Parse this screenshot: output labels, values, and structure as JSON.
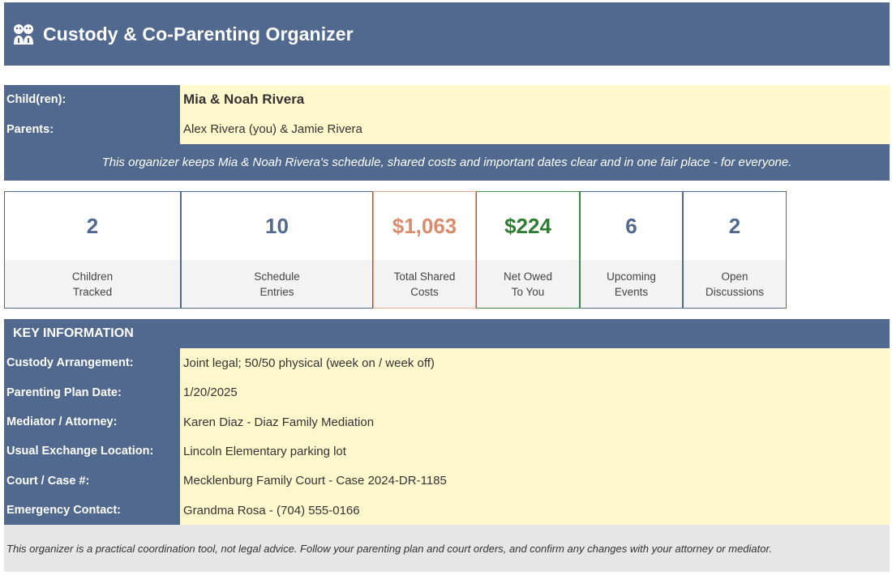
{
  "header": {
    "icon": "family-icon",
    "title": "Custody & Co-Parenting Organizer"
  },
  "profile": {
    "children_label": "Child(ren):",
    "children_value": "Mia & Noah Rivera",
    "parents_label": "Parents:",
    "parents_value": "Alex Rivera (you) & Jamie Rivera",
    "tagline": "This organizer keeps Mia & Noah Rivera's schedule, shared costs and important dates clear and in one fair place - for everyone."
  },
  "kpis": [
    {
      "value": "2",
      "line1": "Children",
      "line2": "Tracked",
      "color": "#51698f"
    },
    {
      "value": "10",
      "line1": "Schedule",
      "line2": "Entries",
      "color": "#51698f"
    },
    {
      "value": "$1,063",
      "line1": "Total Shared",
      "line2": "Costs",
      "color": "#d98b6b"
    },
    {
      "value": "$224",
      "line1": "Net Owed",
      "line2": "To You",
      "color": "#2f7d32"
    },
    {
      "value": "6",
      "line1": "Upcoming",
      "line2": "Events",
      "color": "#51698f"
    },
    {
      "value": "2",
      "line1": "Open",
      "line2": "Discussions",
      "color": "#51698f"
    }
  ],
  "key_info": {
    "heading": "KEY INFORMATION",
    "rows": [
      {
        "label": "Custody Arrangement:",
        "value": "Joint legal; 50/50 physical (week on / week off)"
      },
      {
        "label": "Parenting Plan Date:",
        "value": "1/20/2025"
      },
      {
        "label": "Mediator / Attorney:",
        "value": "Karen Diaz - Diaz Family Mediation"
      },
      {
        "label": "Usual Exchange Location:",
        "value": "Lincoln Elementary parking lot"
      },
      {
        "label": "Court / Case #:",
        "value": "Mecklenburg Family Court - Case 2024-DR-1185"
      },
      {
        "label": "Emergency Contact:",
        "value": "Grandma Rosa - (704) 555-0166"
      }
    ]
  },
  "footer": {
    "disclaimer": "This organizer is a practical coordination tool, not legal advice. Follow your parenting plan and court orders, and confirm any changes with your attorney or mediator."
  },
  "colors": {
    "header_blue": "#51698f",
    "value_yellow": "#fff8cc",
    "accent_orange": "#d98b6b",
    "accent_green": "#2f7d32"
  }
}
